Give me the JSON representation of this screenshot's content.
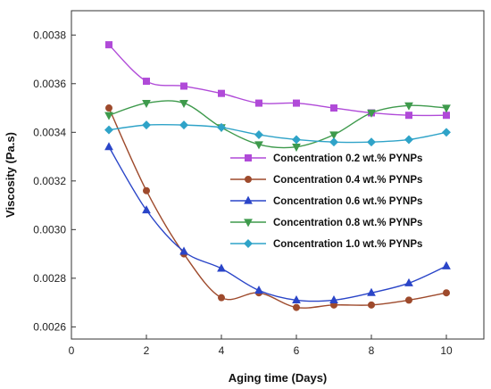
{
  "chart_data": {
    "type": "line",
    "xlabel": "Aging time (Days)",
    "ylabel": "Viscosity (Pa.s)",
    "xlim": [
      0,
      11
    ],
    "ylim": [
      0.00255,
      0.0039
    ],
    "xticks": [
      "0",
      "2",
      "4",
      "6",
      "8",
      "10"
    ],
    "yticks": [
      "0.0026",
      "0.0028",
      "0.0030",
      "0.0032",
      "0.0034",
      "0.0036",
      "0.0038"
    ],
    "grid": false,
    "legend_position": "center-right",
    "x": [
      1,
      2,
      3,
      4,
      5,
      6,
      7,
      8,
      9,
      10
    ],
    "series": [
      {
        "name": "Concentration 0.2 wt.% PYNPs",
        "color": "#b04ad8",
        "marker": "square",
        "values": [
          0.00376,
          0.00361,
          0.00359,
          0.00356,
          0.00352,
          0.00352,
          0.0035,
          0.00348,
          0.00347,
          0.00347
        ]
      },
      {
        "name": "Concentration 0.4 wt.% PYNPs",
        "color": "#9e4a2c",
        "marker": "circle",
        "values": [
          0.0035,
          0.00316,
          0.0029,
          0.00272,
          0.00274,
          0.00268,
          0.00269,
          0.00269,
          0.00271,
          0.00274
        ]
      },
      {
        "name": "Concentration 0.6 wt.% PYNPs",
        "color": "#2a45c8",
        "marker": "triangle-up",
        "values": [
          0.00334,
          0.00308,
          0.00291,
          0.00284,
          0.00275,
          0.00271,
          0.00271,
          0.00274,
          0.00278,
          0.00285
        ]
      },
      {
        "name": "Concentration 0.8 wt.% PYNPs",
        "color": "#3e9a4c",
        "marker": "triangle-down",
        "values": [
          0.00347,
          0.00352,
          0.00352,
          0.00342,
          0.00335,
          0.00334,
          0.00339,
          0.00348,
          0.00351,
          0.0035
        ]
      },
      {
        "name": "Concentration 1.0 wt.% PYNPs",
        "color": "#2fa3c8",
        "marker": "diamond",
        "values": [
          0.00341,
          0.00343,
          0.00343,
          0.00342,
          0.00339,
          0.00337,
          0.00336,
          0.00336,
          0.00337,
          0.0034
        ]
      }
    ]
  }
}
